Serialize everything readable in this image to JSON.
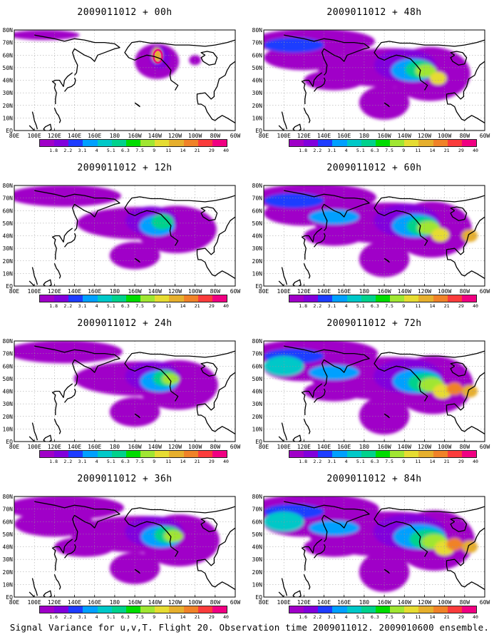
{
  "caption": "Signal Variance for u,v,T. Flight 20. Observation time 2009011012. 2009010600 ensemble.",
  "colorbar": {
    "labels": [
      "1.8",
      "2.2",
      "3.1",
      "4",
      "5.1",
      "6.3",
      "7.5",
      "9",
      "11",
      "14",
      "21",
      "29",
      "40"
    ],
    "labels_alt": [
      "1.6",
      "2.2",
      "3.1",
      "4",
      "5.1",
      "6.3",
      "7.5",
      "9",
      "11",
      "14",
      "21",
      "29",
      "40"
    ],
    "colors": [
      "#a000c8",
      "#8200dc",
      "#1e3cff",
      "#00a0ff",
      "#00c8c8",
      "#00d28c",
      "#00dc00",
      "#a0e632",
      "#e6dc32",
      "#e6af2d",
      "#f08228",
      "#fa3c3c",
      "#f00082"
    ]
  },
  "axes": {
    "xticks": [
      "80E",
      "100E",
      "120E",
      "140E",
      "160E",
      "180",
      "160W",
      "140W",
      "120W",
      "100W",
      "80W",
      "60W"
    ],
    "yticks": [
      "EQ",
      "10N",
      "20N",
      "30N",
      "40N",
      "50N",
      "60N",
      "70N",
      "80N"
    ]
  },
  "chart_data": [
    {
      "type": "heatmap",
      "title": "2009011012 + 00h",
      "forecast_hour": 0,
      "colorbar_labels": "labels"
    },
    {
      "type": "heatmap",
      "title": "2009011012 + 12h",
      "forecast_hour": 12,
      "colorbar_labels": "labels"
    },
    {
      "type": "heatmap",
      "title": "2009011012 + 24h",
      "forecast_hour": 24,
      "colorbar_labels": "labels"
    },
    {
      "type": "heatmap",
      "title": "2009011012 + 36h",
      "forecast_hour": 36,
      "colorbar_labels": "labels_alt"
    },
    {
      "type": "heatmap",
      "title": "2009011012 + 48h",
      "forecast_hour": 48,
      "colorbar_labels": "labels"
    },
    {
      "type": "heatmap",
      "title": "2009011012 + 60h",
      "forecast_hour": 60,
      "colorbar_labels": "labels"
    },
    {
      "type": "heatmap",
      "title": "2009011012 + 72h",
      "forecast_hour": 72,
      "colorbar_labels": "labels"
    },
    {
      "type": "heatmap",
      "title": "2009011012 + 84h",
      "forecast_hour": 84,
      "colorbar_labels": "labels_alt"
    }
  ]
}
